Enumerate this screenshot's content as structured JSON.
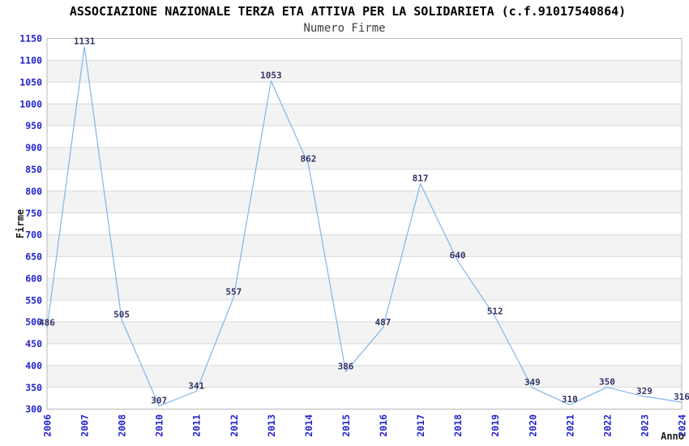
{
  "header": {
    "title": "ASSOCIAZIONE NAZIONALE TERZA ETA ATTIVA PER LA SOLIDARIETA (c.f.91017540864)",
    "subtitle": "Numero Firme"
  },
  "chart_data": {
    "type": "line",
    "title": "ASSOCIAZIONE NAZIONALE TERZA ETA ATTIVA PER LA SOLIDARIETA (c.f.91017540864)",
    "subtitle": "Numero Firme",
    "categories": [
      "2006",
      "2007",
      "2008",
      "2010",
      "2011",
      "2012",
      "2013",
      "2014",
      "2015",
      "2016",
      "2017",
      "2018",
      "2019",
      "2020",
      "2021",
      "2022",
      "2023",
      "2024"
    ],
    "values": [
      486,
      1131,
      505,
      307,
      341,
      557,
      1053,
      862,
      386,
      487,
      817,
      640,
      512,
      349,
      310,
      350,
      329,
      316
    ],
    "data_labels_shown": true,
    "xlabel": "Anno",
    "ylabel": "Firme",
    "ylim": [
      300,
      1150
    ],
    "y_ticks": [
      300,
      350,
      400,
      450,
      500,
      550,
      600,
      650,
      700,
      750,
      800,
      850,
      900,
      950,
      1000,
      1050,
      1100,
      1150
    ],
    "grid": "horizontal gridlines with alternating striped bands",
    "legend": "none",
    "note_missing_year": "2009 absent from x axis"
  },
  "colors": {
    "line": "#82b4ec",
    "tick_label_blue": "#2222cc",
    "data_label_navy": "#333366",
    "axis_title_dark": "#1b1b1b",
    "band_gray": "#f3f3f3",
    "gridline": "#d9d9d9",
    "plot_border": "#b8b8b8",
    "background": "#ffffff"
  }
}
